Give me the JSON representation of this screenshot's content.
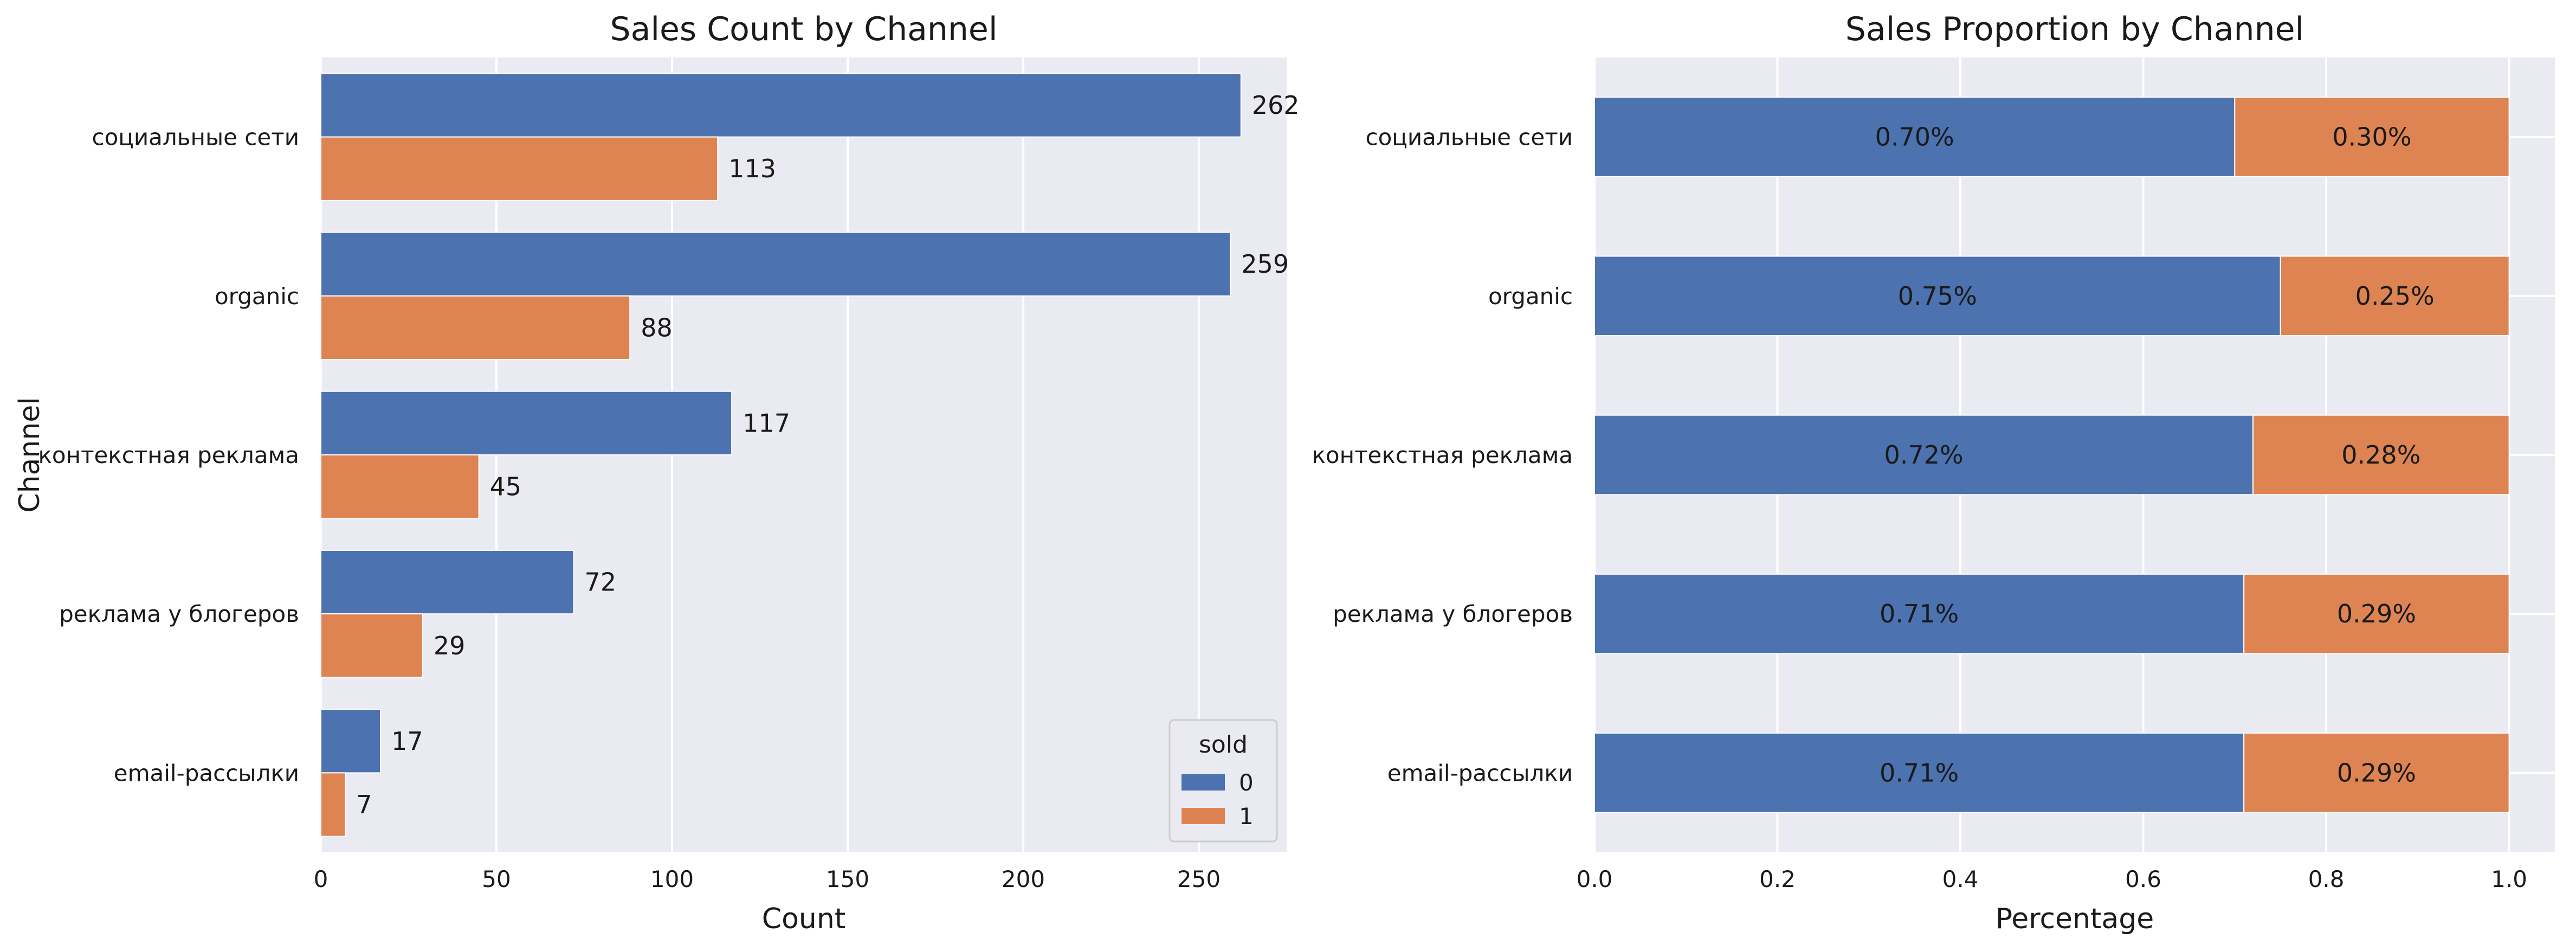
{
  "colors": {
    "plot_bg": "#EAEAF2",
    "grid": "#FFFFFF",
    "series0": "#4C72B0",
    "series1": "#DD8452"
  },
  "chart_data": [
    {
      "type": "bar",
      "orientation": "horizontal",
      "title": "Sales Count by Channel",
      "xlabel": "Count",
      "ylabel": "Channel",
      "categories": [
        "социальные сети",
        "organic",
        "контекстная реклама",
        "реклама у блогеров",
        "email-рассылки"
      ],
      "series": [
        {
          "name": "0",
          "values": [
            262,
            259,
            117,
            72,
            17
          ]
        },
        {
          "name": "1",
          "values": [
            113,
            88,
            45,
            29,
            7
          ]
        }
      ],
      "value_labels": [
        [
          "262",
          "259",
          "117",
          "72",
          "17"
        ],
        [
          "113",
          "88",
          "45",
          "29",
          "7"
        ]
      ],
      "xlim": [
        0,
        275
      ],
      "xticks": [
        "0",
        "50",
        "100",
        "150",
        "200",
        "250"
      ],
      "grid": true,
      "legend": {
        "title": "sold",
        "entries": [
          "0",
          "1"
        ],
        "position": "lower-right"
      }
    },
    {
      "type": "bar",
      "orientation": "horizontal",
      "stacked": true,
      "title": "Sales Proportion by Channel",
      "xlabel": "Percentage",
      "ylabel": "",
      "categories": [
        "социальные сети",
        "organic",
        "контекстная реклама",
        "реклама у блогеров",
        "email-рассылки"
      ],
      "series": [
        {
          "values": [
            0.7,
            0.75,
            0.72,
            0.71,
            0.71
          ]
        },
        {
          "values": [
            0.3,
            0.25,
            0.28,
            0.29,
            0.29
          ]
        }
      ],
      "value_labels": [
        [
          "0.70%",
          "0.75%",
          "0.72%",
          "0.71%",
          "0.71%"
        ],
        [
          "0.30%",
          "0.25%",
          "0.28%",
          "0.29%",
          "0.29%"
        ]
      ],
      "xlim": [
        0,
        1.05
      ],
      "xticks": [
        "0.0",
        "0.2",
        "0.4",
        "0.6",
        "0.8",
        "1.0"
      ],
      "grid": true
    }
  ]
}
